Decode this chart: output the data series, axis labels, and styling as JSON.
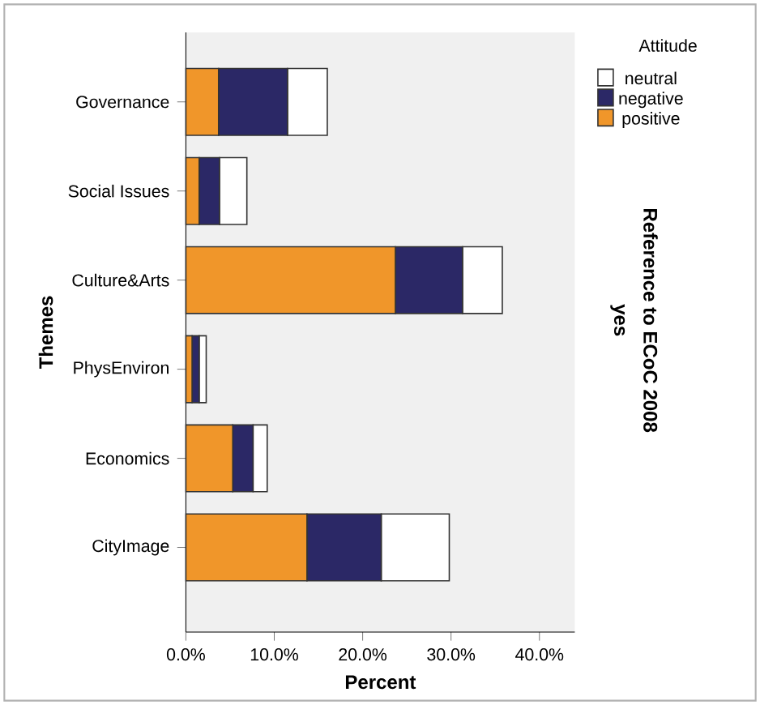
{
  "chart_data": {
    "type": "bar",
    "orientation": "horizontal",
    "stacked": true,
    "xlabel": "Percent",
    "ylabel": "Themes",
    "legend_title": "Attitude",
    "legend": "top right",
    "categories": [
      "Governance",
      "Social Issues",
      "Culture&Arts",
      "PhysEnviron",
      "Economics",
      "CityImage"
    ],
    "series": [
      {
        "name": "positive",
        "color": "#f0962a",
        "values": [
          3.7,
          1.5,
          23.7,
          0.7,
          5.3,
          13.7
        ]
      },
      {
        "name": "negative",
        "color": "#2b2866",
        "values": [
          7.8,
          2.3,
          7.6,
          0.8,
          2.3,
          8.4
        ]
      },
      {
        "name": "neutral",
        "color": "#ffffff",
        "values": [
          4.5,
          3.1,
          4.5,
          0.8,
          1.6,
          7.7
        ]
      }
    ],
    "xlim": [
      0,
      44
    ],
    "xticks": [
      {
        "value": 0,
        "label": "0.0%"
      },
      {
        "value": 10,
        "label": "10.0%"
      },
      {
        "value": 20,
        "label": "20.0%"
      },
      {
        "value": 30,
        "label": "30.0%"
      },
      {
        "value": 40,
        "label": "40.0%"
      }
    ],
    "grid": false,
    "annotations": [
      "Reference to ECoC 2008",
      "yes"
    ]
  }
}
